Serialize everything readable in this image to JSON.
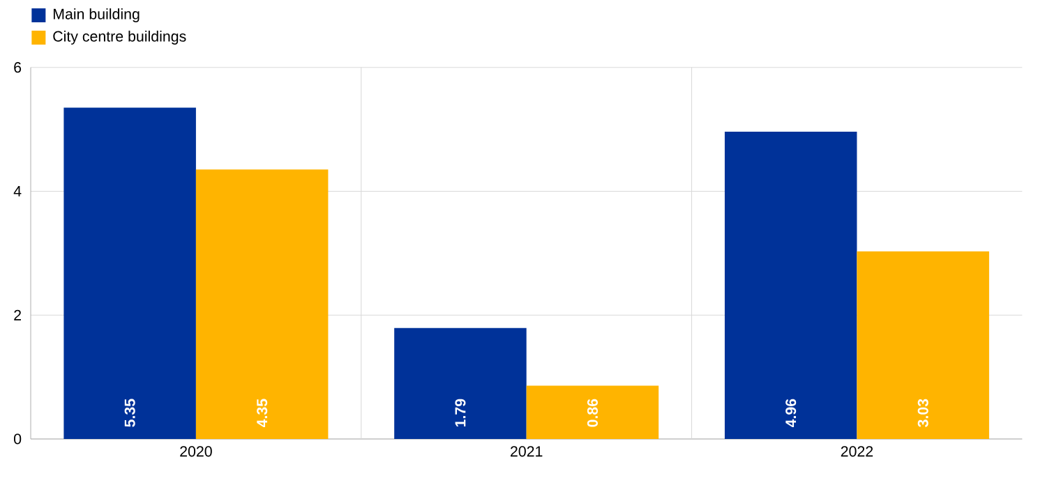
{
  "chart_data": {
    "type": "bar",
    "categories": [
      "2020",
      "2021",
      "2022"
    ],
    "series": [
      {
        "name": "Main building",
        "color": "#003299",
        "values": [
          5.35,
          1.79,
          4.96
        ]
      },
      {
        "name": "City centre buildings",
        "color": "#ffb400",
        "values": [
          4.35,
          0.86,
          3.03
        ]
      }
    ],
    "ylim": [
      0,
      6
    ],
    "yticks": [
      0,
      2,
      4,
      6
    ],
    "grid": true,
    "legend": "top left",
    "data_labels": true
  }
}
